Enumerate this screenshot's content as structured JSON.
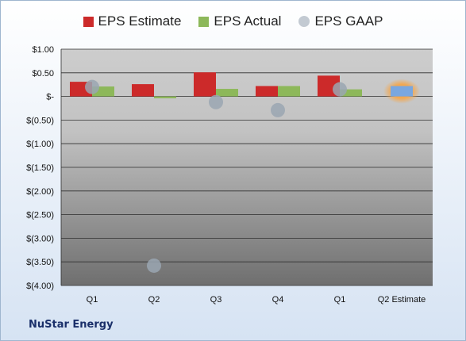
{
  "company": "NuStar Energy",
  "colors": {
    "estimate": "#cc2a2a",
    "actual": "#8db85a",
    "gaap": "#9aa6b2",
    "estimate_future": "#7aa7df",
    "highlight": "#f5a64a"
  },
  "chart_data": {
    "type": "bar",
    "categories": [
      "Q1",
      "Q2",
      "Q3",
      "Q4",
      "Q1",
      "Q2 Estimate"
    ],
    "series": [
      {
        "name": "EPS Estimate",
        "values": [
          0.31,
          0.26,
          0.51,
          0.22,
          0.44,
          0.22
        ]
      },
      {
        "name": "EPS Actual",
        "values": [
          0.21,
          -0.04,
          0.16,
          0.22,
          0.15,
          null
        ]
      },
      {
        "name": "EPS GAAP",
        "values": [
          0.2,
          -3.58,
          -0.12,
          -0.29,
          0.15,
          null
        ]
      }
    ],
    "yticks": [
      "$1.00",
      "$0.50",
      "$-",
      "$(0.50)",
      "$(1.00)",
      "$(1.50)",
      "$(2.00)",
      "$(2.50)",
      "$(3.00)",
      "$(3.50)",
      "$(4.00)"
    ],
    "ylim": [
      -4.0,
      1.0
    ],
    "grid": true,
    "legend": "top"
  }
}
